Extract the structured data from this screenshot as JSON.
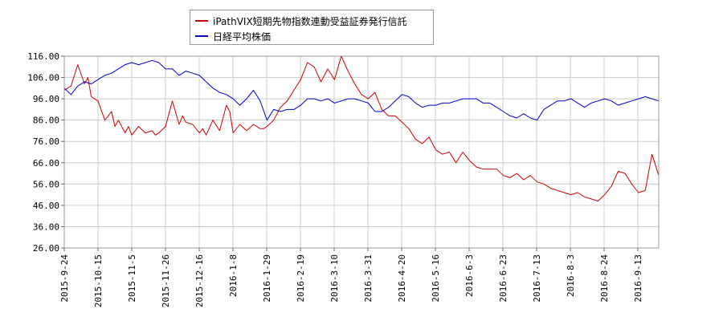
{
  "chart_data": {
    "type": "line",
    "title": "",
    "xlabel": "",
    "ylabel": "",
    "ylim": [
      26,
      116
    ],
    "y_ticks": [
      "116.00",
      "106.00",
      "96.00",
      "86.00",
      "76.00",
      "66.00",
      "56.00",
      "46.00",
      "36.00",
      "26.00"
    ],
    "x_ticks": [
      "2015-9-24",
      "2015-10-15",
      "2015-11-5",
      "2015-11-26",
      "2015-12-16",
      "2016-1-8",
      "2016-1-29",
      "2016-2-19",
      "2016-3-10",
      "2016-3-31",
      "2016-4-20",
      "2016-5-16",
      "2016-6-3",
      "2016-6-23",
      "2016-7-13",
      "2016-8-3",
      "2016-8-24",
      "2016-9-13"
    ],
    "grid": true,
    "legend": "top-center",
    "series": [
      {
        "name": "iPathVIX短期先物指数連動受益証券発行信託",
        "color": "#cc0000",
        "x_index": [
          0,
          2,
          4,
          6,
          7,
          8,
          10,
          12,
          14,
          15,
          16,
          18,
          19,
          20,
          22,
          24,
          26,
          27,
          28,
          30,
          32,
          34,
          35,
          36,
          38,
          40,
          41,
          42,
          44,
          46,
          48,
          49,
          50,
          52,
          54,
          56,
          58,
          59,
          60,
          62,
          64,
          66,
          68,
          70,
          72,
          74,
          76,
          78,
          80,
          82,
          84,
          86,
          88,
          90,
          92,
          94,
          96,
          98,
          100,
          102,
          104,
          106,
          108,
          110,
          112,
          114,
          116,
          118,
          120,
          122,
          124,
          126,
          128,
          130,
          132,
          134,
          136,
          138,
          140,
          142,
          144,
          146,
          148,
          150,
          152,
          154,
          156,
          158,
          160,
          162,
          164,
          166,
          168,
          170,
          172,
          174,
          176
        ],
        "values": [
          100,
          102,
          112,
          103,
          106,
          97,
          95,
          86,
          90,
          83,
          86,
          80,
          83,
          79,
          83,
          80,
          81,
          79,
          80,
          83,
          95,
          84,
          88,
          85,
          84,
          80,
          82,
          79,
          86,
          81,
          93,
          90,
          80,
          84,
          81,
          84,
          82,
          82,
          83,
          86,
          92,
          95,
          100,
          105,
          113,
          111,
          104,
          110,
          105,
          116,
          109,
          103,
          98,
          96,
          99,
          91,
          88,
          88,
          85,
          82,
          77,
          75,
          78,
          72,
          70,
          71,
          66,
          71,
          67,
          64,
          63,
          63,
          63,
          60,
          59,
          61,
          58,
          60,
          57,
          56,
          54,
          53,
          52,
          51,
          52,
          50,
          49,
          48,
          51,
          55,
          62,
          61,
          56,
          52,
          53,
          70,
          60
        ]
      },
      {
        "name": "日経平均株価",
        "color": "#0000cc",
        "x_index": [
          0,
          2,
          4,
          6,
          8,
          10,
          12,
          14,
          16,
          18,
          20,
          22,
          24,
          26,
          28,
          30,
          32,
          34,
          36,
          38,
          40,
          42,
          44,
          46,
          48,
          50,
          52,
          54,
          56,
          58,
          60,
          62,
          64,
          66,
          68,
          70,
          72,
          74,
          76,
          78,
          80,
          82,
          84,
          86,
          88,
          90,
          92,
          94,
          96,
          98,
          100,
          102,
          104,
          106,
          108,
          110,
          112,
          114,
          116,
          118,
          120,
          122,
          124,
          126,
          128,
          130,
          132,
          134,
          136,
          138,
          140,
          142,
          144,
          146,
          148,
          150,
          152,
          154,
          156,
          158,
          160,
          162,
          164,
          166,
          168,
          170,
          172,
          174,
          176
        ],
        "values": [
          101,
          98,
          102,
          104,
          103,
          105,
          107,
          108,
          110,
          112,
          113,
          112,
          113,
          114,
          113,
          110,
          110,
          107,
          109,
          108,
          107,
          104,
          101,
          99,
          98,
          96,
          93,
          96,
          100,
          95,
          86,
          91,
          90,
          91,
          91,
          93,
          96,
          96,
          95,
          96,
          94,
          95,
          96,
          96,
          95,
          94,
          90,
          90,
          92,
          95,
          98,
          97,
          94,
          92,
          93,
          93,
          94,
          94,
          95,
          96,
          96,
          96,
          94,
          94,
          92,
          90,
          88,
          87,
          89,
          87,
          86,
          91,
          93,
          95,
          95,
          96,
          94,
          92,
          94,
          95,
          96,
          95,
          93,
          94,
          95,
          96,
          97,
          96,
          95
        ]
      }
    ]
  }
}
